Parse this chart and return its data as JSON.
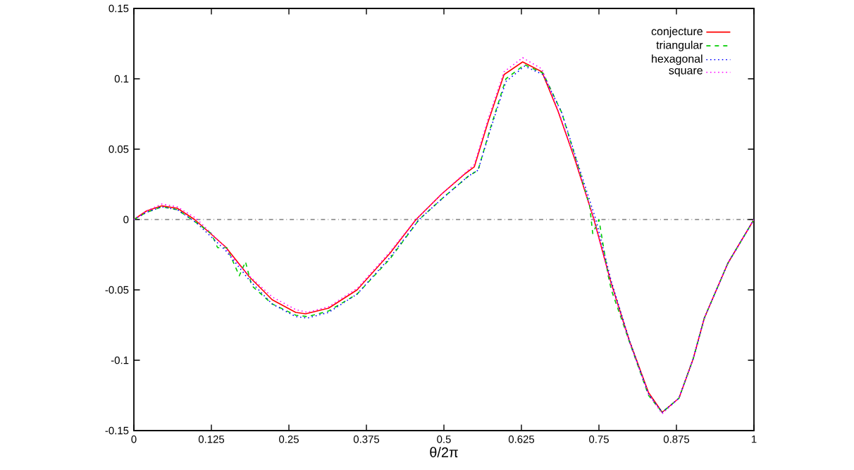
{
  "chart_data": {
    "type": "line",
    "xlabel": "θ/2π",
    "xlim": [
      0,
      1
    ],
    "ylim": [
      -0.15,
      0.15
    ],
    "xticks": [
      0,
      0.125,
      0.25,
      0.375,
      0.5,
      0.625,
      0.75,
      0.875,
      1
    ],
    "yticks": [
      -0.15,
      -0.1,
      -0.05,
      0,
      0.05,
      0.1,
      0.15
    ],
    "legend": "top right",
    "grid": false,
    "ref_lines": [
      {
        "axis": "y",
        "value": 0,
        "color": "#404040",
        "line_style": "dashdot"
      }
    ],
    "series": [
      {
        "name": "conjecture",
        "color": "#ff0000",
        "line_style": "solid",
        "x": [
          0,
          0.02,
          0.045,
          0.07,
          0.098,
          0.148,
          0.186,
          0.223,
          0.261,
          0.277,
          0.314,
          0.36,
          0.413,
          0.455,
          0.496,
          0.534,
          0.549,
          0.571,
          0.597,
          0.627,
          0.658,
          0.684,
          0.711,
          0.742,
          0.769,
          0.799,
          0.83,
          0.852,
          0.879,
          0.902,
          0.92,
          0.958,
          1
        ],
        "values": [
          0,
          0.006,
          0.0097,
          0.008,
          0,
          -0.0195,
          -0.0406,
          -0.057,
          -0.066,
          -0.067,
          -0.063,
          -0.05,
          -0.024,
          0,
          0.018,
          0.0325,
          0.0374,
          0.069,
          0.103,
          0.112,
          0.105,
          0.077,
          0.043,
          0,
          -0.044,
          -0.086,
          -0.123,
          -0.137,
          -0.127,
          -0.099,
          -0.07,
          -0.031,
          0
        ]
      },
      {
        "name": "triangular",
        "color": "#00cc00",
        "line_style": "dashed",
        "x": [
          0,
          0.02,
          0.045,
          0.07,
          0.1,
          0.125,
          0.135,
          0.15,
          0.17,
          0.18,
          0.19,
          0.223,
          0.261,
          0.28,
          0.314,
          0.36,
          0.413,
          0.46,
          0.5,
          0.54,
          0.555,
          0.575,
          0.6,
          0.63,
          0.66,
          0.69,
          0.715,
          0.735,
          0.74,
          0.75,
          0.765,
          0.77,
          0.8,
          0.83,
          0.852,
          0.879,
          0.902,
          0.92,
          0.958,
          1
        ],
        "values": [
          0,
          0.005,
          0.009,
          0.007,
          -0.002,
          -0.01,
          -0.02,
          -0.02,
          -0.04,
          -0.03,
          -0.047,
          -0.06,
          -0.068,
          -0.069,
          -0.065,
          -0.053,
          -0.028,
          0,
          0.016,
          0.031,
          0.035,
          0.065,
          0.1,
          0.11,
          0.104,
          0.076,
          0.04,
          0.01,
          -0.01,
          0,
          -0.04,
          -0.05,
          -0.088,
          -0.125,
          -0.137,
          -0.127,
          -0.099,
          -0.07,
          -0.031,
          0
        ]
      },
      {
        "name": "hexagonal",
        "color": "#0000ff",
        "line_style": "dotted",
        "x": [
          0,
          0.02,
          0.045,
          0.07,
          0.1,
          0.148,
          0.186,
          0.223,
          0.261,
          0.28,
          0.314,
          0.36,
          0.413,
          0.46,
          0.5,
          0.54,
          0.555,
          0.575,
          0.6,
          0.63,
          0.66,
          0.69,
          0.715,
          0.745,
          0.77,
          0.8,
          0.83,
          0.852,
          0.879,
          0.902,
          0.92,
          0.958,
          1
        ],
        "values": [
          0,
          0.005,
          0.009,
          0.007,
          -0.002,
          -0.022,
          -0.043,
          -0.06,
          -0.069,
          -0.07,
          -0.066,
          -0.053,
          -0.027,
          0,
          0.016,
          0.031,
          0.035,
          0.064,
          0.098,
          0.109,
          0.103,
          0.076,
          0.041,
          0,
          -0.044,
          -0.087,
          -0.124,
          -0.137,
          -0.127,
          -0.099,
          -0.07,
          -0.031,
          0
        ]
      },
      {
        "name": "square",
        "color": "#ff00ff",
        "line_style": "dotted",
        "x": [
          0,
          0.02,
          0.045,
          0.07,
          0.1,
          0.148,
          0.155,
          0.165,
          0.186,
          0.223,
          0.261,
          0.28,
          0.314,
          0.36,
          0.413,
          0.455,
          0.496,
          0.534,
          0.549,
          0.571,
          0.597,
          0.627,
          0.658,
          0.684,
          0.711,
          0.742,
          0.769,
          0.799,
          0.83,
          0.852,
          0.879,
          0.902,
          0.92,
          0.958,
          1
        ],
        "values": [
          0,
          0.006,
          0.011,
          0.009,
          0.001,
          -0.02,
          -0.025,
          -0.03,
          -0.04,
          -0.055,
          -0.064,
          -0.066,
          -0.062,
          -0.049,
          -0.023,
          0,
          0.018,
          0.033,
          0.039,
          0.071,
          0.105,
          0.115,
          0.107,
          0.078,
          0.044,
          0,
          -0.045,
          -0.087,
          -0.124,
          -0.138,
          -0.127,
          -0.099,
          -0.07,
          -0.031,
          0
        ]
      }
    ]
  }
}
